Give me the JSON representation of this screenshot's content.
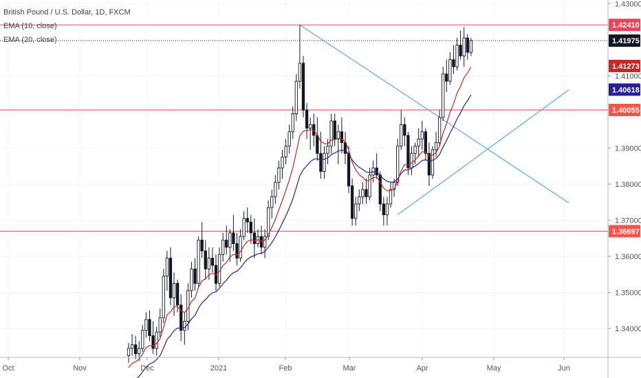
{
  "legend": {
    "title": "British Pound / U.S. Dollar, 1D, FXCM",
    "ema10": "EMA (10, close)",
    "ema20": "EMA (20, close)"
  },
  "chart_data": {
    "type": "candlestick",
    "symbol": "British Pound / U.S. Dollar",
    "interval": "1D",
    "source": "FXCM",
    "ylim": [
      1.332,
      1.431
    ],
    "x_ticks": [
      "Oct",
      "Nov",
      "Dec",
      "2021",
      "Feb",
      "Mar",
      "Apr",
      "May",
      "Jun"
    ],
    "y_ticks": [
      "1.43000",
      "1.41000",
      "1.39000",
      "1.38000",
      "1.37000",
      "1.36000",
      "1.35000",
      "1.34000"
    ],
    "horizontal_levels": [
      {
        "price": 1.4241,
        "label": "1.42410",
        "color": "#e8475b"
      },
      {
        "price": 1.40055,
        "label": "1.40055",
        "color": "#f23645"
      },
      {
        "price": 1.36697,
        "label": "1.36697",
        "color": "#f23645"
      }
    ],
    "price_badges": [
      {
        "price": 1.4241,
        "label": "1.42410",
        "color": "#e8475b"
      },
      {
        "price": 1.41975,
        "label": "1.41975",
        "color": "#131722"
      },
      {
        "price": 1.41273,
        "label": "1.41273",
        "color": "#c62828"
      },
      {
        "price": 1.40618,
        "label": "1.40618",
        "color": "#2a1f96"
      },
      {
        "price": 1.40055,
        "label": "1.40055",
        "color": "#f4574a"
      },
      {
        "price": 1.36697,
        "label": "1.36697",
        "color": "#f4574a"
      }
    ],
    "last_price": 1.41975,
    "trendlines": [
      {
        "name": "descending",
        "color": "#5aa9e6",
        "from": {
          "bar": 49,
          "price": 1.4241
        },
        "to": {
          "bar": 126,
          "price": 1.3748
        }
      },
      {
        "name": "ascending",
        "color": "#5aa9e6",
        "from": {
          "bar": 77,
          "price": 1.3715
        },
        "to": {
          "bar": 126,
          "price": 1.4061
        }
      }
    ],
    "ema10_color": "#c62828",
    "ema20_color": "#2a1f96",
    "candles": [
      [
        1.3325,
        1.336,
        1.3305,
        1.3345
      ],
      [
        1.3345,
        1.3385,
        1.3325,
        1.3355
      ],
      [
        1.3355,
        1.338,
        1.3315,
        1.333
      ],
      [
        1.333,
        1.3365,
        1.331,
        1.3345
      ],
      [
        1.3345,
        1.341,
        1.3335,
        1.3395
      ],
      [
        1.3395,
        1.3445,
        1.3375,
        1.3425
      ],
      [
        1.3425,
        1.345,
        1.3365,
        1.338
      ],
      [
        1.338,
        1.342,
        1.333,
        1.3345
      ],
      [
        1.3345,
        1.3405,
        1.3325,
        1.339
      ],
      [
        1.339,
        1.3455,
        1.3375,
        1.343
      ],
      [
        1.343,
        1.3565,
        1.3415,
        1.3545
      ],
      [
        1.3545,
        1.3615,
        1.3505,
        1.3595
      ],
      [
        1.3595,
        1.3625,
        1.3465,
        1.3485
      ],
      [
        1.3485,
        1.3555,
        1.3435,
        1.3525
      ],
      [
        1.3525,
        1.3535,
        1.3445,
        1.3465
      ],
      [
        1.3465,
        1.3495,
        1.3365,
        1.3395
      ],
      [
        1.3395,
        1.3445,
        1.3355,
        1.342
      ],
      [
        1.342,
        1.3525,
        1.3395,
        1.3505
      ],
      [
        1.3505,
        1.3585,
        1.3485,
        1.3565
      ],
      [
        1.3565,
        1.3595,
        1.3505,
        1.3525
      ],
      [
        1.3525,
        1.3655,
        1.3515,
        1.3645
      ],
      [
        1.3645,
        1.3695,
        1.3595,
        1.3615
      ],
      [
        1.3615,
        1.3645,
        1.3535,
        1.3565
      ],
      [
        1.3565,
        1.3625,
        1.3535,
        1.3595
      ],
      [
        1.3595,
        1.3625,
        1.3555,
        1.3575
      ],
      [
        1.3575,
        1.3605,
        1.3505,
        1.3525
      ],
      [
        1.3525,
        1.3625,
        1.3515,
        1.3605
      ],
      [
        1.3605,
        1.3665,
        1.3585,
        1.3645
      ],
      [
        1.3645,
        1.3685,
        1.3605,
        1.3625
      ],
      [
        1.3625,
        1.3675,
        1.3585,
        1.3665
      ],
      [
        1.3665,
        1.3715,
        1.3615,
        1.3635
      ],
      [
        1.3635,
        1.3665,
        1.3575,
        1.3595
      ],
      [
        1.3595,
        1.3675,
        1.3585,
        1.3655
      ],
      [
        1.3655,
        1.3725,
        1.3645,
        1.3705
      ],
      [
        1.3705,
        1.3735,
        1.3665,
        1.3695
      ],
      [
        1.3695,
        1.3715,
        1.3635,
        1.3665
      ],
      [
        1.3665,
        1.3705,
        1.3595,
        1.3635
      ],
      [
        1.3635,
        1.3675,
        1.3625,
        1.3655
      ],
      [
        1.3655,
        1.3685,
        1.3605,
        1.3625
      ],
      [
        1.3625,
        1.3675,
        1.3595,
        1.3655
      ],
      [
        1.3655,
        1.3755,
        1.3645,
        1.3735
      ],
      [
        1.3735,
        1.3785,
        1.3705,
        1.3765
      ],
      [
        1.3765,
        1.3825,
        1.3745,
        1.3805
      ],
      [
        1.3805,
        1.3865,
        1.3785,
        1.3845
      ],
      [
        1.3845,
        1.3895,
        1.3815,
        1.3875
      ],
      [
        1.3875,
        1.3925,
        1.3855,
        1.3905
      ],
      [
        1.3905,
        1.3965,
        1.3885,
        1.3945
      ],
      [
        1.3945,
        1.4015,
        1.3925,
        1.3995
      ],
      [
        1.3995,
        1.4105,
        1.3975,
        1.4085
      ],
      [
        1.4085,
        1.4241,
        1.4065,
        1.4135
      ],
      [
        1.4135,
        1.4155,
        1.3985,
        1.4005
      ],
      [
        1.4005,
        1.4025,
        1.3925,
        1.3955
      ],
      [
        1.3955,
        1.3985,
        1.3895,
        1.3965
      ],
      [
        1.3965,
        1.3995,
        1.3905,
        1.3935
      ],
      [
        1.3935,
        1.3985,
        1.3865,
        1.3885
      ],
      [
        1.3885,
        1.3945,
        1.3815,
        1.3835
      ],
      [
        1.3835,
        1.3905,
        1.3815,
        1.3885
      ],
      [
        1.3885,
        1.3925,
        1.3855,
        1.3905
      ],
      [
        1.3905,
        1.3995,
        1.3885,
        1.3975
      ],
      [
        1.3975,
        1.3995,
        1.3905,
        1.3925
      ],
      [
        1.3925,
        1.3965,
        1.3855,
        1.3945
      ],
      [
        1.3945,
        1.3985,
        1.3885,
        1.3915
      ],
      [
        1.3915,
        1.3945,
        1.3855,
        1.3885
      ],
      [
        1.3885,
        1.3905,
        1.3775,
        1.3795
      ],
      [
        1.3795,
        1.3815,
        1.3685,
        1.3705
      ],
      [
        1.3705,
        1.3765,
        1.3685,
        1.3745
      ],
      [
        1.3745,
        1.3785,
        1.3725,
        1.3765
      ],
      [
        1.3765,
        1.3805,
        1.3745,
        1.3785
      ],
      [
        1.3785,
        1.3815,
        1.3745,
        1.3765
      ],
      [
        1.3765,
        1.3845,
        1.3755,
        1.3825
      ],
      [
        1.3825,
        1.3865,
        1.3805,
        1.3845
      ],
      [
        1.3845,
        1.3885,
        1.3815,
        1.3825
      ],
      [
        1.3825,
        1.3835,
        1.3725,
        1.3745
      ],
      [
        1.3745,
        1.3765,
        1.3685,
        1.3715
      ],
      [
        1.3715,
        1.3765,
        1.3685,
        1.3745
      ],
      [
        1.3745,
        1.3805,
        1.3735,
        1.3785
      ],
      [
        1.3785,
        1.3815,
        1.3765,
        1.3805
      ],
      [
        1.3805,
        1.3925,
        1.3795,
        1.3905
      ],
      [
        1.3905,
        1.4005,
        1.3895,
        1.3965
      ],
      [
        1.3965,
        1.3985,
        1.3905,
        1.3935
      ],
      [
        1.3935,
        1.3945,
        1.3825,
        1.3845
      ],
      [
        1.3845,
        1.3905,
        1.3825,
        1.3885
      ],
      [
        1.3885,
        1.3915,
        1.3855,
        1.3905
      ],
      [
        1.3905,
        1.3955,
        1.3875,
        1.3925
      ],
      [
        1.3925,
        1.3975,
        1.3895,
        1.3945
      ],
      [
        1.3945,
        1.3955,
        1.3865,
        1.3885
      ],
      [
        1.3885,
        1.3915,
        1.3795,
        1.3825
      ],
      [
        1.3825,
        1.3905,
        1.3815,
        1.3895
      ],
      [
        1.3895,
        1.3945,
        1.3875,
        1.3915
      ],
      [
        1.3915,
        1.4005,
        1.3905,
        1.3985
      ],
      [
        1.3985,
        1.4125,
        1.3975,
        1.4105
      ],
      [
        1.4105,
        1.4145,
        1.4055,
        1.4085
      ],
      [
        1.4085,
        1.4165,
        1.4075,
        1.4145
      ],
      [
        1.4145,
        1.4185,
        1.4105,
        1.4125
      ],
      [
        1.4125,
        1.4205,
        1.4115,
        1.4185
      ],
      [
        1.4185,
        1.4225,
        1.4145,
        1.4155
      ],
      [
        1.4155,
        1.4235,
        1.4125,
        1.4205
      ],
      [
        1.4205,
        1.4215,
        1.4145,
        1.4165
      ],
      [
        1.4165,
        1.4205,
        1.4155,
        1.41975
      ]
    ]
  }
}
